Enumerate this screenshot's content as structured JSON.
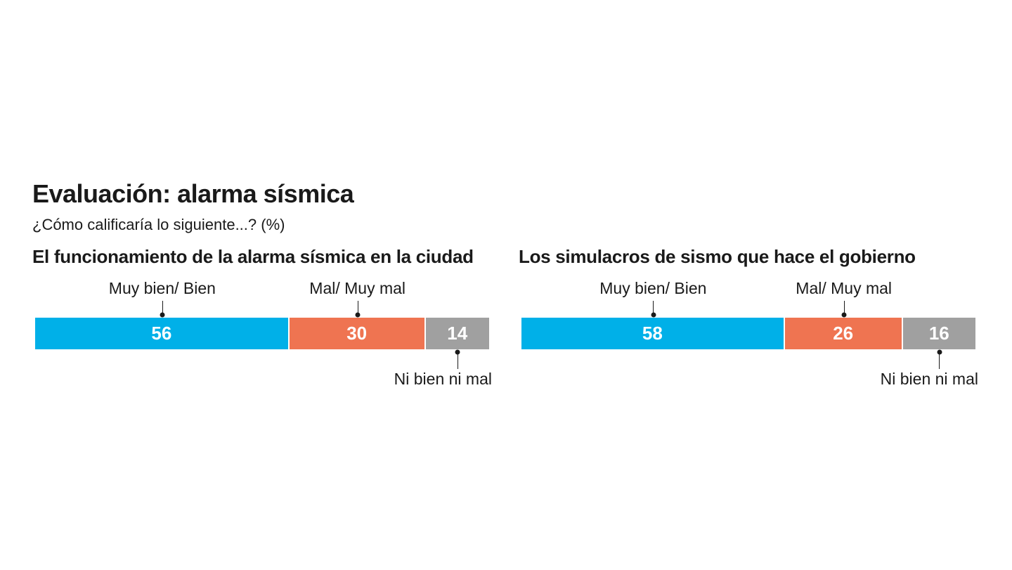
{
  "header": {
    "title": "Evaluación: alarma sísmica",
    "subtitle": "¿Cómo calificaría lo siguiente...? (%)"
  },
  "chart_data": [
    {
      "type": "bar",
      "title": "El funcionamiento de la alarma sísmica en la ciudad",
      "categories": [
        "Muy bien/ Bien",
        "Mal/ Muy mal",
        "Ni bien ni mal"
      ],
      "values": [
        56,
        30,
        14
      ],
      "colors": [
        "#00b0e8",
        "#ef7451",
        "#a0a0a0"
      ],
      "orientation": "horizontal-stacked",
      "unit": "%"
    },
    {
      "type": "bar",
      "title": "Los simulacros de sismo que hace el gobierno",
      "categories": [
        "Muy bien/ Bien",
        "Mal/ Muy mal",
        "Ni bien ni mal"
      ],
      "values": [
        58,
        26,
        16
      ],
      "colors": [
        "#00b0e8",
        "#ef7451",
        "#a0a0a0"
      ],
      "orientation": "horizontal-stacked",
      "unit": "%"
    }
  ]
}
